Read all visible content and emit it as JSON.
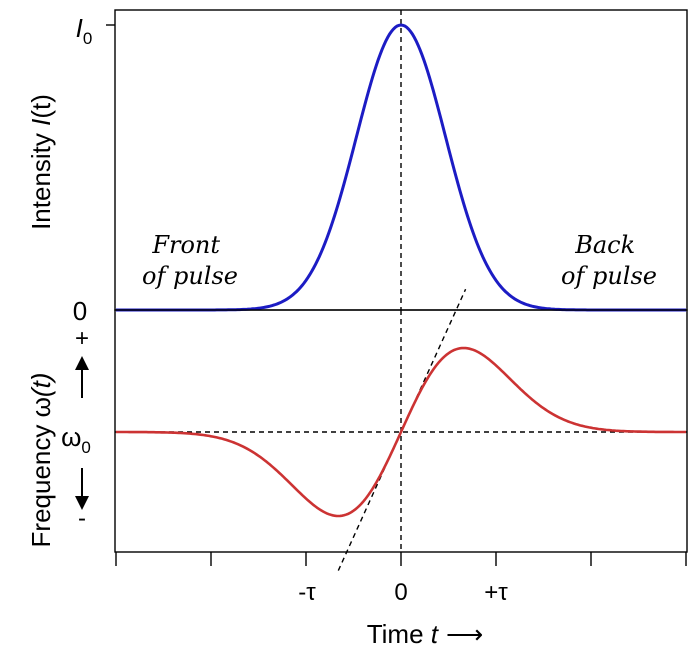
{
  "chart_data": [
    {
      "type": "line",
      "panel": "upper",
      "ylabel_prefix": "Intensity ",
      "ylabel_var": "I",
      "ylabel_arg": "(t)",
      "ytick_top_var": "I",
      "ytick_top_sub": "0",
      "ytick_bottom": "0",
      "annotations": {
        "front_line1": "Front",
        "front_line2": "of pulse",
        "back_line1": "Back",
        "back_line2": "of pulse"
      },
      "series": [
        {
          "color": "#1c1cc4",
          "function": "gaussian",
          "peak_time": 0,
          "peak_value": 1,
          "sigma_in_tau": 0.47
        }
      ],
      "ylim": [
        0,
        1
      ],
      "xlim": [
        -3.0,
        3.0
      ],
      "reference_line_at_time": 0
    },
    {
      "type": "line",
      "panel": "lower",
      "ylabel_prefix": "Frequency ",
      "ylabel_var": "ω",
      "ylabel_arg": "(t)",
      "ytick_center": "ω",
      "ytick_center_sub": "0",
      "plus_label": "+",
      "minus_label": "-",
      "xlabel_prefix": "Time ",
      "xlabel_var": "t",
      "xlabel_arrow": "⟶",
      "xtick_labels": [
        {
          "t": -1,
          "label": "-τ"
        },
        {
          "t": 0,
          "label": "0"
        },
        {
          "t": 1,
          "label": "+τ"
        }
      ],
      "xticks": [
        -3,
        -2,
        -1,
        0,
        1,
        2,
        3
      ],
      "series": [
        {
          "color": "#cc3333",
          "function": "derivative-of-gaussian",
          "extremum_time": 0.66,
          "extremum_value": 0.7
        }
      ],
      "tangent_at_zero": {
        "slope": 1.75,
        "style": "dashed"
      },
      "baseline": 0,
      "ylim": [
        -1,
        1
      ],
      "xlim": [
        -3.0,
        3.0
      ]
    }
  ]
}
